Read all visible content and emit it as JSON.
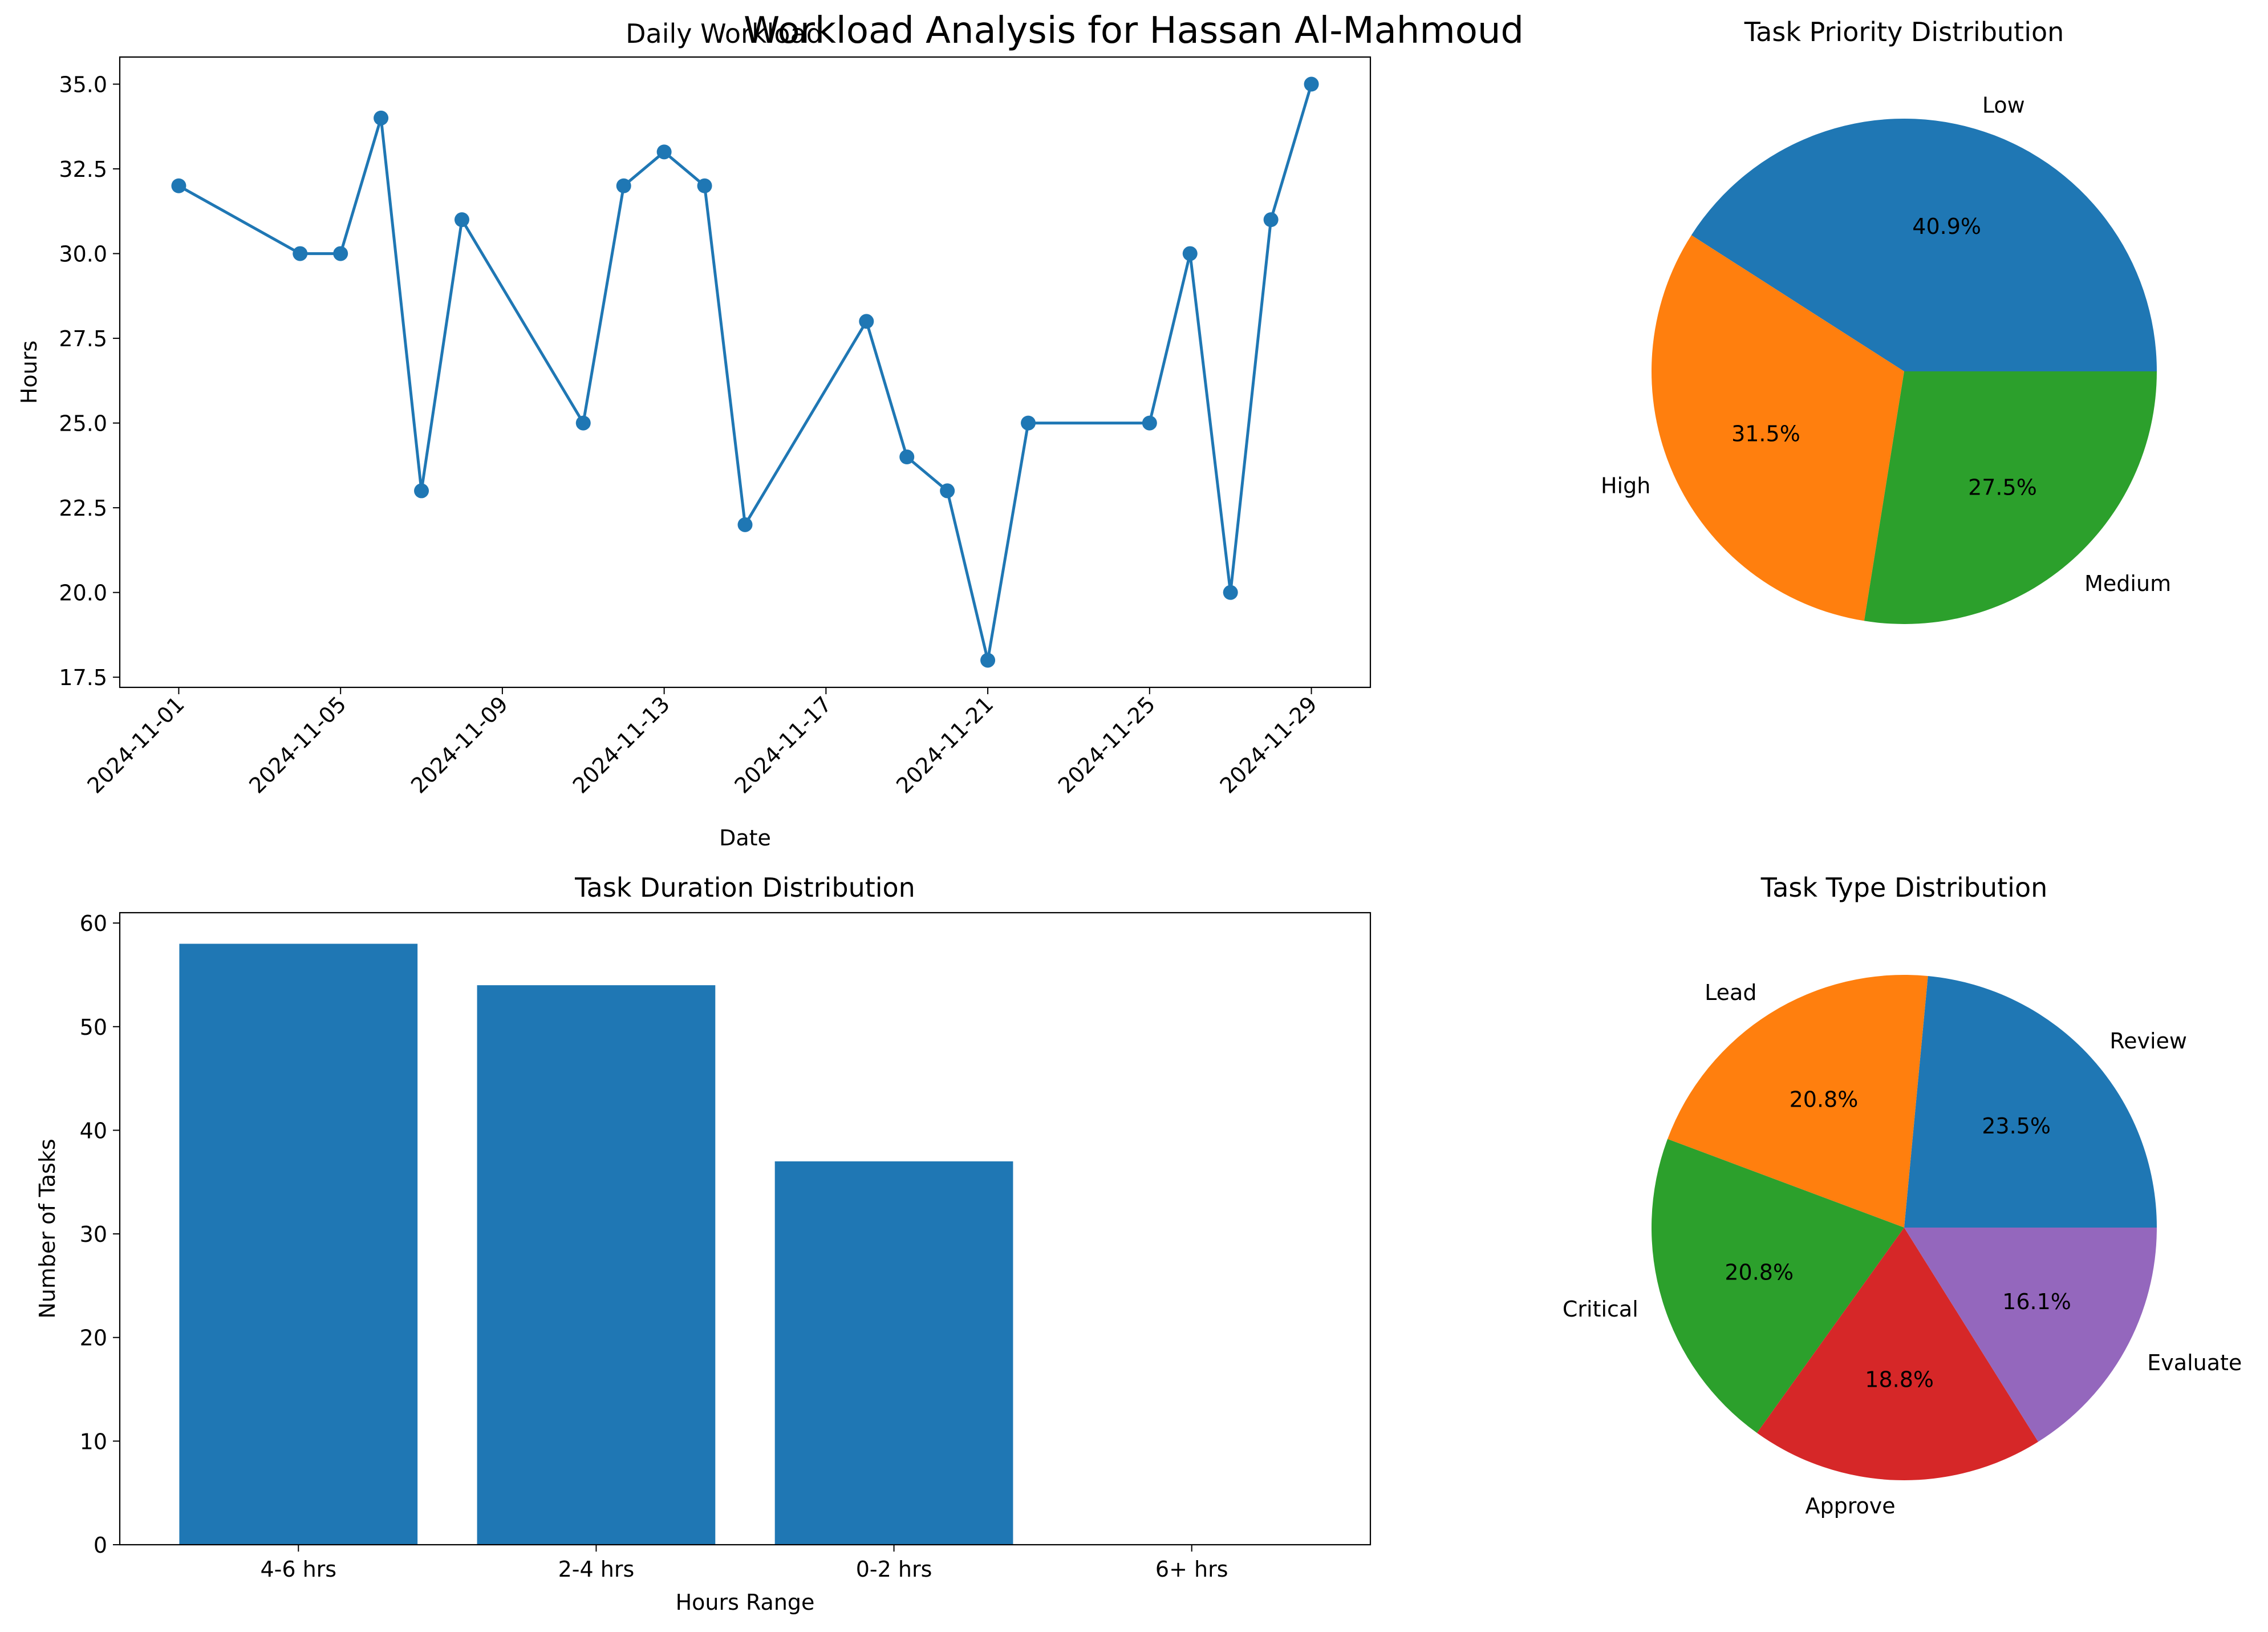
{
  "figure": {
    "suptitle": "Workload Analysis for Hassan Al-Mahmoud"
  },
  "chart_data": [
    {
      "id": "daily",
      "type": "line",
      "title": "Daily Workload",
      "xlabel": "Date",
      "ylabel": "Hours",
      "x_type": "date",
      "x_range": [
        "2024-10-30T13:00",
        "2024-11-30T11:00"
      ],
      "ylim": [
        17.2,
        35.8
      ],
      "x_ticks": [
        "2024-11-01",
        "2024-11-05",
        "2024-11-09",
        "2024-11-13",
        "2024-11-17",
        "2024-11-21",
        "2024-11-25",
        "2024-11-29"
      ],
      "y_ticks": [
        17.5,
        20.0,
        22.5,
        25.0,
        27.5,
        30.0,
        32.5,
        35.0
      ],
      "color": "#1f77b4",
      "grid": false,
      "series": [
        {
          "x": [
            "2024-11-01",
            "2024-11-04",
            "2024-11-05",
            "2024-11-06",
            "2024-11-07",
            "2024-11-08",
            "2024-11-11",
            "2024-11-12",
            "2024-11-13",
            "2024-11-14",
            "2024-11-15",
            "2024-11-18",
            "2024-11-19",
            "2024-11-20",
            "2024-11-21",
            "2024-11-22",
            "2024-11-25",
            "2024-11-26",
            "2024-11-27",
            "2024-11-28",
            "2024-11-29"
          ],
          "y": [
            32,
            30,
            30,
            34,
            23,
            31,
            25,
            32,
            33,
            32,
            22,
            28,
            24,
            23,
            18,
            25,
            25,
            30,
            20,
            31,
            35
          ]
        }
      ]
    },
    {
      "id": "priority",
      "type": "pie",
      "title": "Task Priority Distribution",
      "labels": [
        "Low",
        "High",
        "Medium"
      ],
      "values": [
        40.9,
        31.5,
        27.5
      ],
      "pct_labels": [
        "40.9%",
        "31.5%",
        "27.5%"
      ],
      "colors": [
        "#1f77b4",
        "#ff7f0e",
        "#2ca02c"
      ]
    },
    {
      "id": "duration",
      "type": "bar",
      "title": "Task Duration Distribution",
      "xlabel": "Hours Range",
      "ylabel": "Number of Tasks",
      "categories": [
        "4-6 hrs",
        "2-4 hrs",
        "0-2 hrs",
        "6+ hrs"
      ],
      "values": [
        58,
        54,
        37,
        0
      ],
      "ylim": [
        0,
        61
      ],
      "y_ticks": [
        0,
        10,
        20,
        30,
        40,
        50,
        60
      ],
      "color": "#1f77b4",
      "grid": false
    },
    {
      "id": "type",
      "type": "pie",
      "title": "Task Type Distribution",
      "labels": [
        "Review",
        "Lead",
        "Critical",
        "Approve",
        "Evaluate"
      ],
      "values": [
        23.5,
        20.8,
        20.8,
        18.8,
        16.1
      ],
      "pct_labels": [
        "23.5%",
        "20.8%",
        "20.8%",
        "18.8%",
        "16.1%"
      ],
      "colors": [
        "#1f77b4",
        "#ff7f0e",
        "#2ca02c",
        "#d62728",
        "#9467bd"
      ]
    }
  ]
}
